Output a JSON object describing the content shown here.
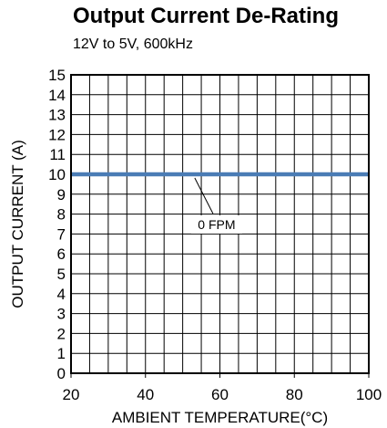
{
  "chart_data": {
    "type": "line",
    "title": "Output Current De-Rating",
    "subtitle": "12V to 5V, 600kHz",
    "xlabel": "AMBIENT TEMPERATURE(°C)",
    "ylabel": "OUTPUT CURRENT (A)",
    "xlim": [
      20,
      100
    ],
    "ylim": [
      0,
      15
    ],
    "x_major_ticks": [
      20,
      40,
      60,
      80,
      100
    ],
    "x_grid_step": 5,
    "y_ticks": [
      0,
      1,
      2,
      3,
      4,
      5,
      6,
      7,
      8,
      9,
      10,
      11,
      12,
      13,
      14,
      15
    ],
    "grid": true,
    "series": [
      {
        "name": "0 FPM",
        "color": "#4a7cb5",
        "x": [
          20,
          100
        ],
        "y": [
          10,
          10
        ]
      }
    ],
    "annotations": [
      {
        "text": "0 FPM",
        "points_to": {
          "x": 53,
          "y": 10
        }
      }
    ]
  }
}
